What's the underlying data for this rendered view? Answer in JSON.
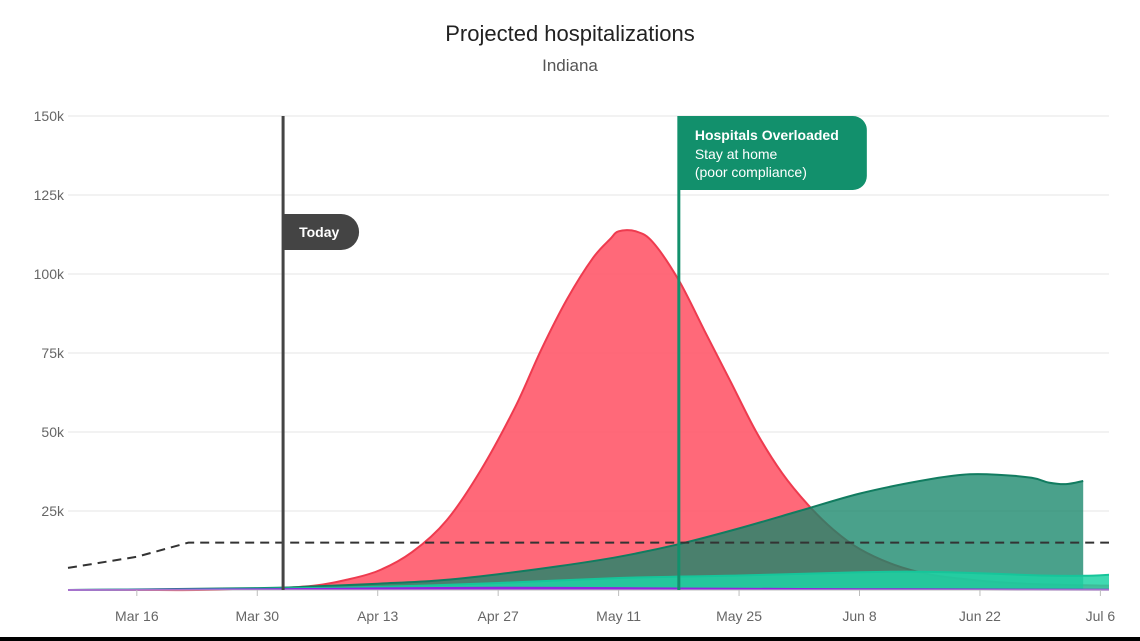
{
  "chart_data": {
    "type": "area",
    "title": "Projected hospitalizations",
    "subtitle": "Indiana",
    "xlabel": "",
    "ylabel": "",
    "x_ticks": [
      "Mar 16",
      "Mar 30",
      "Apr 13",
      "Apr 27",
      "May 11",
      "May 25",
      "Jun 8",
      "Jun 22",
      "Jul 6"
    ],
    "x_tick_days": [
      0,
      14,
      28,
      42,
      56,
      70,
      84,
      98,
      112
    ],
    "xlim_days": [
      -8,
      113
    ],
    "y_ticks": [
      "150k",
      "125k",
      "100k",
      "75k",
      "50k",
      "25k"
    ],
    "y_tick_values": [
      150000,
      125000,
      100000,
      75000,
      50000,
      25000
    ],
    "ylim": [
      0,
      150000
    ],
    "grid": true,
    "series": [
      {
        "name": "",
        "style": "area",
        "color": "#ff5467",
        "stroke": "#ee3b4f",
        "opacity": 0.88,
        "points": [
          [
            -8,
            0
          ],
          [
            0,
            0
          ],
          [
            7,
            0
          ],
          [
            14,
            300
          ],
          [
            18,
            800
          ],
          [
            21,
            1500
          ],
          [
            24,
            3000
          ],
          [
            28,
            6000
          ],
          [
            32,
            12000
          ],
          [
            36,
            22000
          ],
          [
            40,
            38000
          ],
          [
            44,
            58000
          ],
          [
            47,
            76000
          ],
          [
            50,
            92000
          ],
          [
            53,
            105000
          ],
          [
            55,
            111000
          ],
          [
            56,
            113500
          ],
          [
            58,
            113500
          ],
          [
            60,
            110000
          ],
          [
            63,
            98000
          ],
          [
            66,
            82000
          ],
          [
            69,
            66000
          ],
          [
            72,
            50000
          ],
          [
            75,
            37000
          ],
          [
            78,
            27000
          ],
          [
            81,
            19000
          ],
          [
            84,
            13000
          ],
          [
            88,
            8000
          ],
          [
            92,
            5000
          ],
          [
            96,
            3500
          ],
          [
            100,
            2500
          ],
          [
            105,
            1800
          ],
          [
            110,
            1500
          ],
          [
            112,
            1400
          ],
          [
            113,
            1400
          ]
        ]
      },
      {
        "name": "",
        "style": "area",
        "color": "#17876a",
        "stroke": "#117c60",
        "opacity": 0.78,
        "points": [
          [
            -8,
            0
          ],
          [
            14,
            600
          ],
          [
            21,
            1200
          ],
          [
            28,
            2000
          ],
          [
            35,
            3000
          ],
          [
            42,
            5000
          ],
          [
            49,
            7500
          ],
          [
            56,
            10500
          ],
          [
            63,
            14500
          ],
          [
            70,
            19500
          ],
          [
            77,
            25000
          ],
          [
            84,
            30500
          ],
          [
            91,
            34500
          ],
          [
            96,
            36500
          ],
          [
            100,
            36500
          ],
          [
            104,
            35500
          ],
          [
            106,
            34000
          ],
          [
            108,
            33500
          ],
          [
            110,
            34500
          ],
          [
            110,
            0
          ]
        ]
      },
      {
        "name": "",
        "style": "area",
        "color": "#1fd3a4",
        "stroke": "#16c59a",
        "opacity": 0.85,
        "points": [
          [
            -8,
            0
          ],
          [
            14,
            400
          ],
          [
            28,
            1000
          ],
          [
            42,
            2200
          ],
          [
            56,
            3800
          ],
          [
            70,
            4600
          ],
          [
            84,
            5600
          ],
          [
            91,
            5800
          ],
          [
            98,
            5300
          ],
          [
            105,
            4600
          ],
          [
            110,
            4500
          ],
          [
            113,
            4800
          ],
          [
            113,
            0
          ]
        ]
      },
      {
        "name": "",
        "style": "area",
        "color": "#9b2fe3",
        "stroke": "#9026dd",
        "opacity": 1,
        "points": [
          [
            -8,
            0
          ],
          [
            14,
            200
          ],
          [
            28,
            500
          ],
          [
            42,
            700
          ],
          [
            56,
            600
          ],
          [
            70,
            400
          ],
          [
            84,
            250
          ],
          [
            98,
            150
          ],
          [
            113,
            100
          ],
          [
            113,
            0
          ]
        ]
      },
      {
        "name": "",
        "style": "dashed-line",
        "color": "#333333",
        "points": [
          [
            -8,
            7000
          ],
          [
            0,
            10500
          ],
          [
            6,
            15000
          ],
          [
            113,
            15000
          ]
        ]
      }
    ],
    "markers": [
      {
        "label": "Today",
        "day": 17,
        "color": "#444444"
      },
      {
        "label": "Hospitals Overloaded",
        "sublabel1": "Stay at home",
        "sublabel2": "(poor compliance)",
        "day": 63,
        "color": "#12906c"
      }
    ]
  }
}
